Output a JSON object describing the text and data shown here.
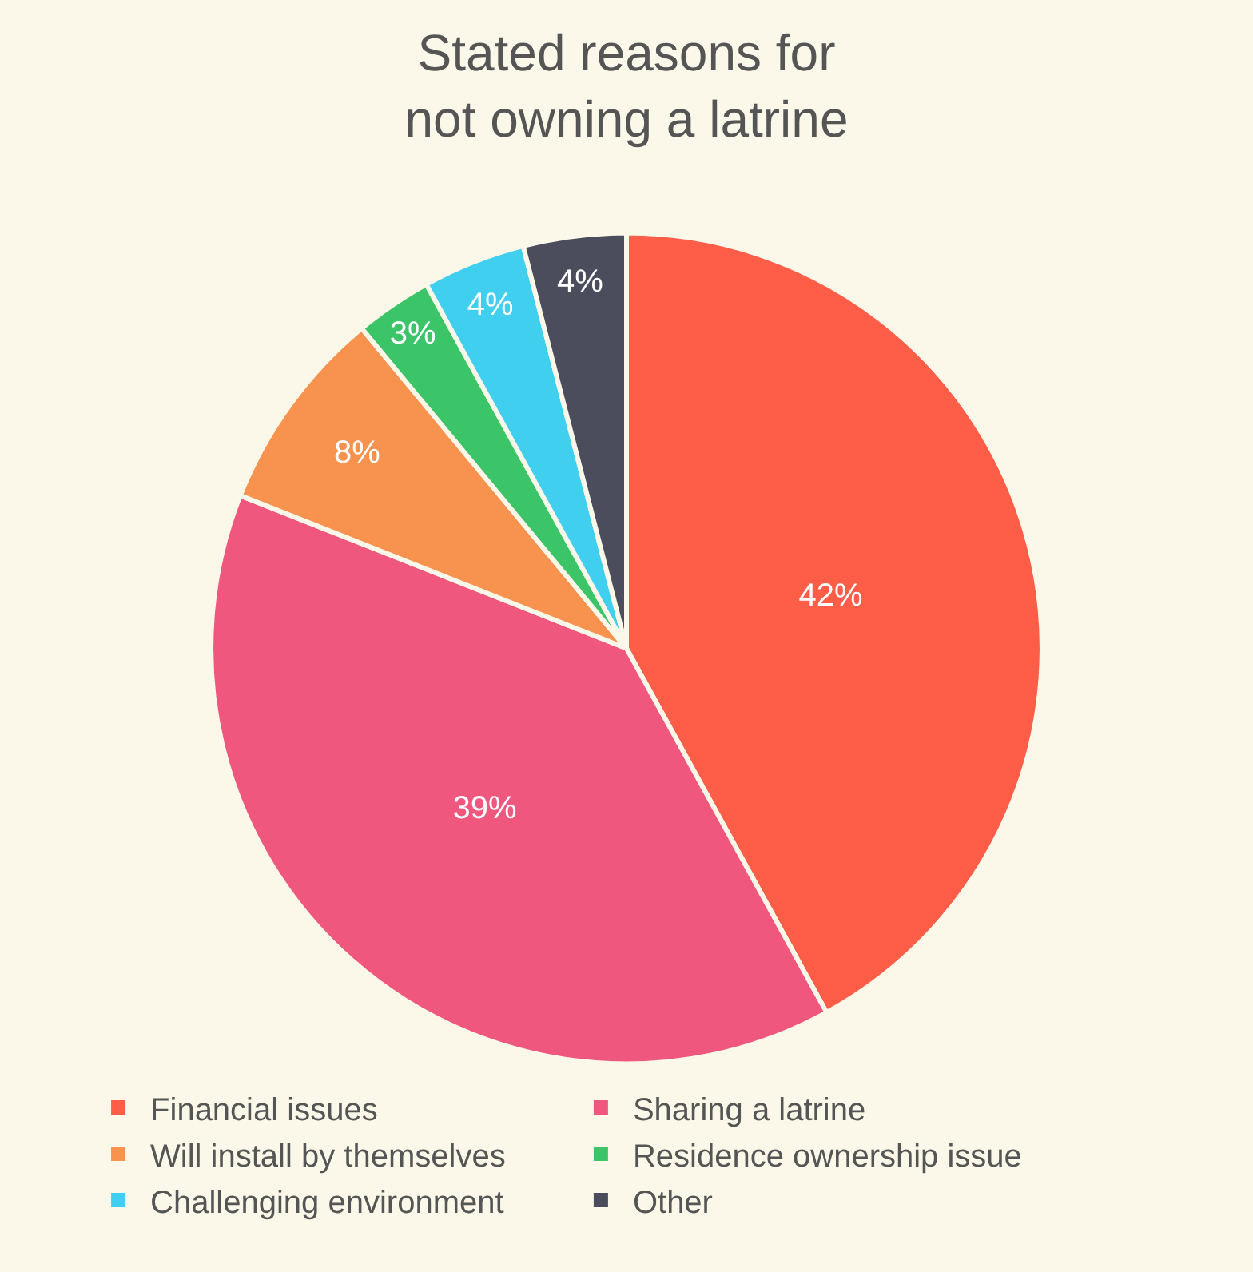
{
  "chart_data": {
    "type": "pie",
    "title": "Stated reasons for\nnot owning a latrine",
    "categories": [
      "Financial issues",
      "Sharing a latrine",
      "Will install by themselves",
      "Residence ownership issue",
      "Challenging environment",
      "Other"
    ],
    "values": [
      42,
      39,
      8,
      3,
      4,
      4
    ],
    "colors": [
      "#fe5d48",
      "#ef577e",
      "#f7924f",
      "#3cc469",
      "#40cfee",
      "#4b4d5d"
    ],
    "value_labels": [
      "42%",
      "39%",
      "8%",
      "3%",
      "4%",
      "4%"
    ],
    "legend": "bottom"
  }
}
